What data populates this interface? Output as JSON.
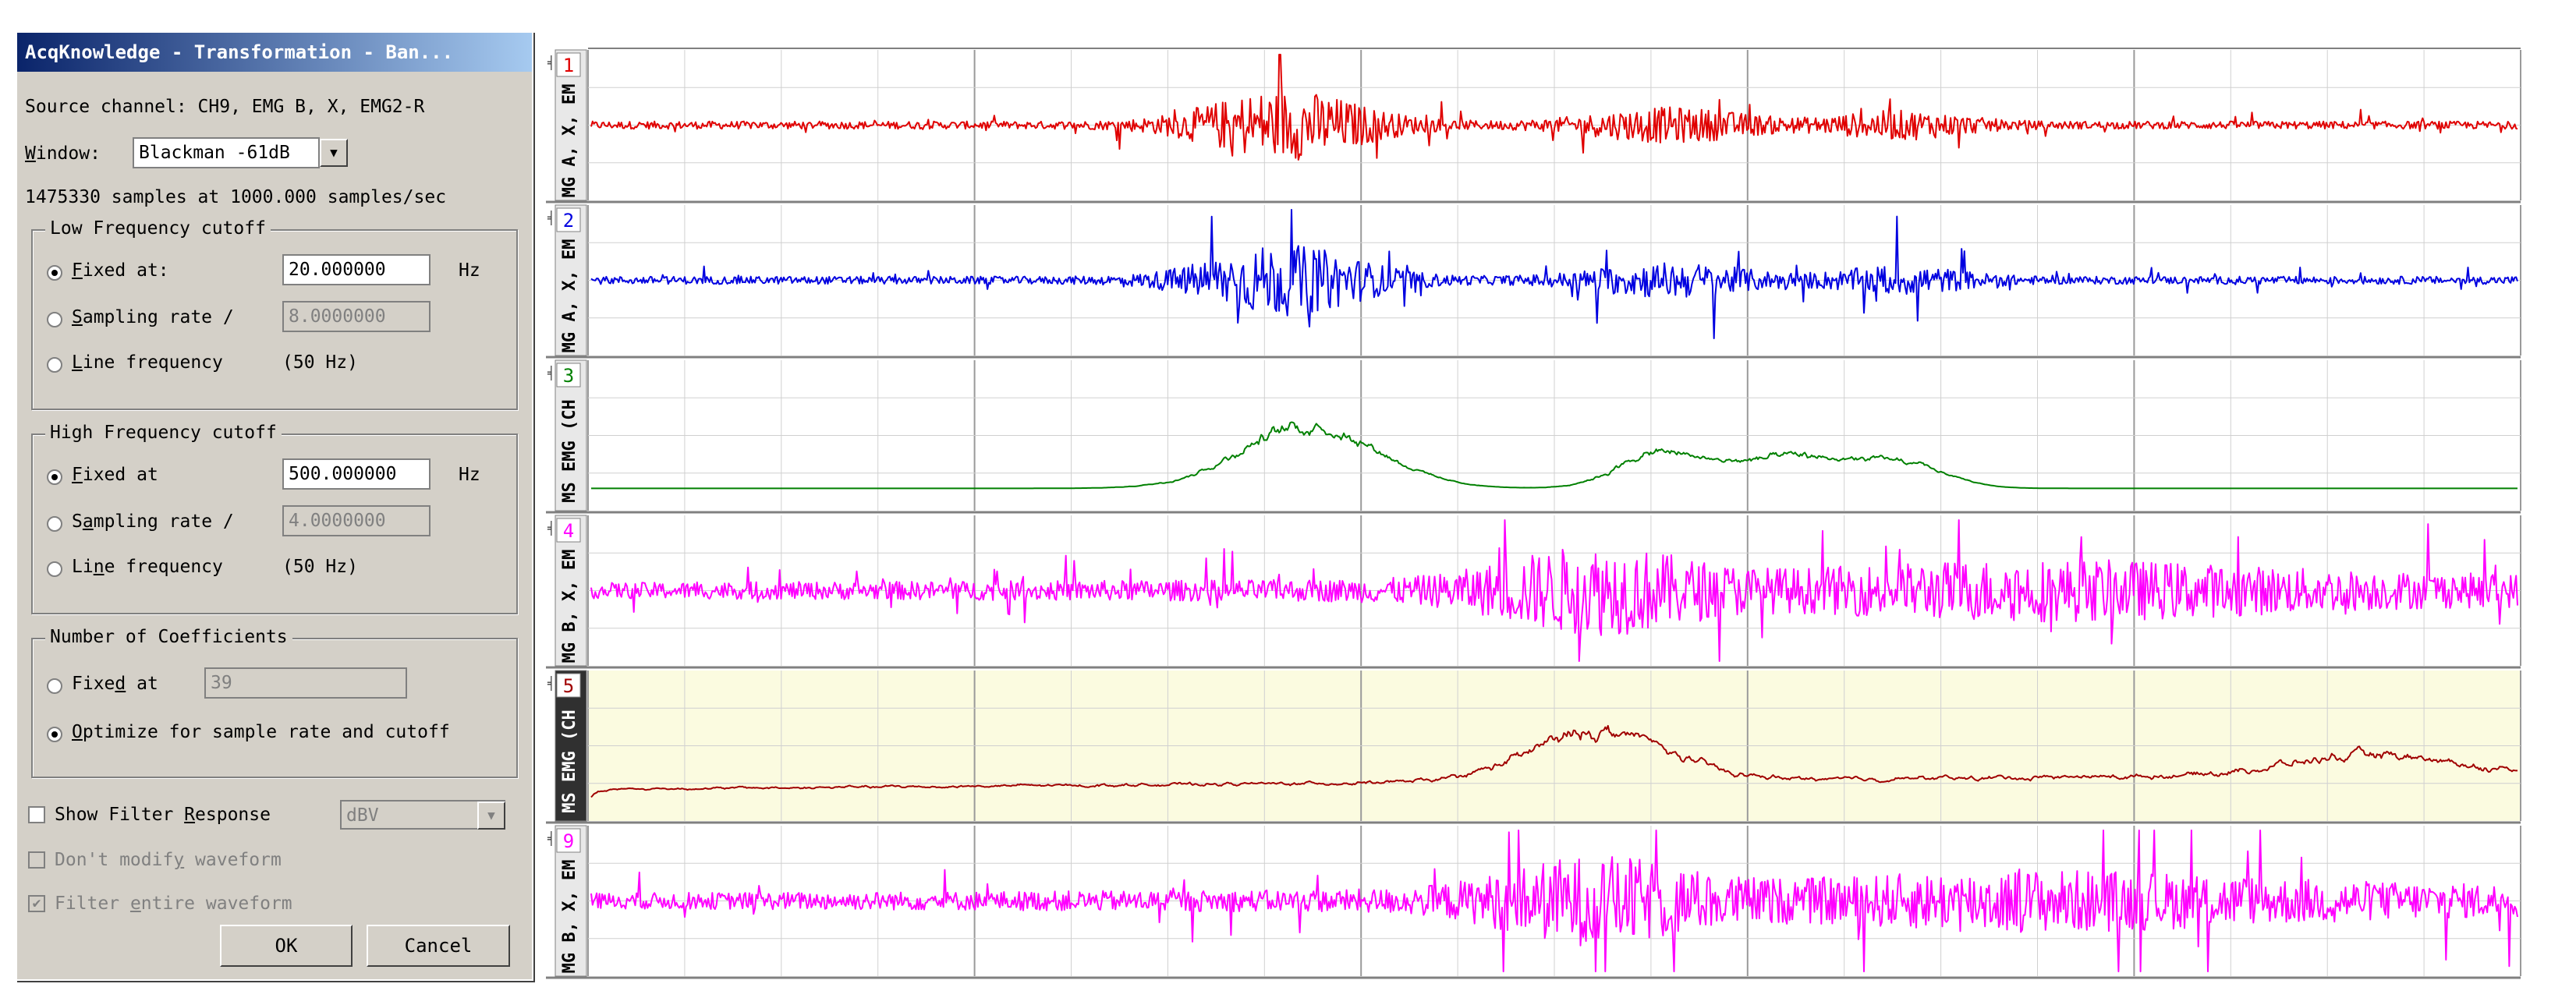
{
  "dialog": {
    "title": "AcqKnowledge - Transformation - Ban...",
    "source_channel": "Source channel: CH9, EMG B, X, EMG2-R",
    "window_label": "Window:",
    "window_value": "Blackman -61dB",
    "samples_info": "1475330 samples at 1000.000 samples/sec",
    "low": {
      "title": "Low Frequency cutoff",
      "fixed_label": "Fixed at:",
      "fixed_value": "20.000000",
      "unit": "Hz",
      "sampling_label": "Sampling rate /",
      "sampling_value": "8.0000000",
      "line_label": "Line frequency",
      "line_value": "(50 Hz)"
    },
    "high": {
      "title": "High Frequency cutoff",
      "fixed_label": "Fixed at",
      "fixed_value": "500.000000",
      "unit": "Hz",
      "sampling_label": "Sampling rate /",
      "sampling_value": "4.0000000",
      "line_label": "Line frequency",
      "line_value": "(50 Hz)"
    },
    "coeff": {
      "title": "Number of Coefficients",
      "fixed_label": "Fixed at",
      "fixed_value": "39",
      "optimize_label": "Optimize for sample rate and cutoff"
    },
    "show_response_label": "Show Filter Response",
    "response_unit": "dBV",
    "dont_modify_label": "Don't modify waveform",
    "filter_entire_label": "Filter entire waveform",
    "ok_label": "OK",
    "cancel_label": "Cancel"
  },
  "channels": [
    {
      "number": "1",
      "label": "MG A, X, EM",
      "color": "#e00000",
      "type": "raw"
    },
    {
      "number": "2",
      "label": "MG A, X, EM",
      "color": "#0000e0",
      "type": "raw"
    },
    {
      "number": "3",
      "label": "MS EMG (CH",
      "color": "#008000",
      "type": "rms"
    },
    {
      "number": "4",
      "label": "MG B, X, EM",
      "color": "#ff00ff",
      "type": "raw"
    },
    {
      "number": "5",
      "label": "MS EMG (CH",
      "color": "#a00000",
      "type": "rms",
      "selected": true
    },
    {
      "number": "9",
      "label": "MG B, X, EM",
      "color": "#ff00ff",
      "type": "raw"
    }
  ]
}
